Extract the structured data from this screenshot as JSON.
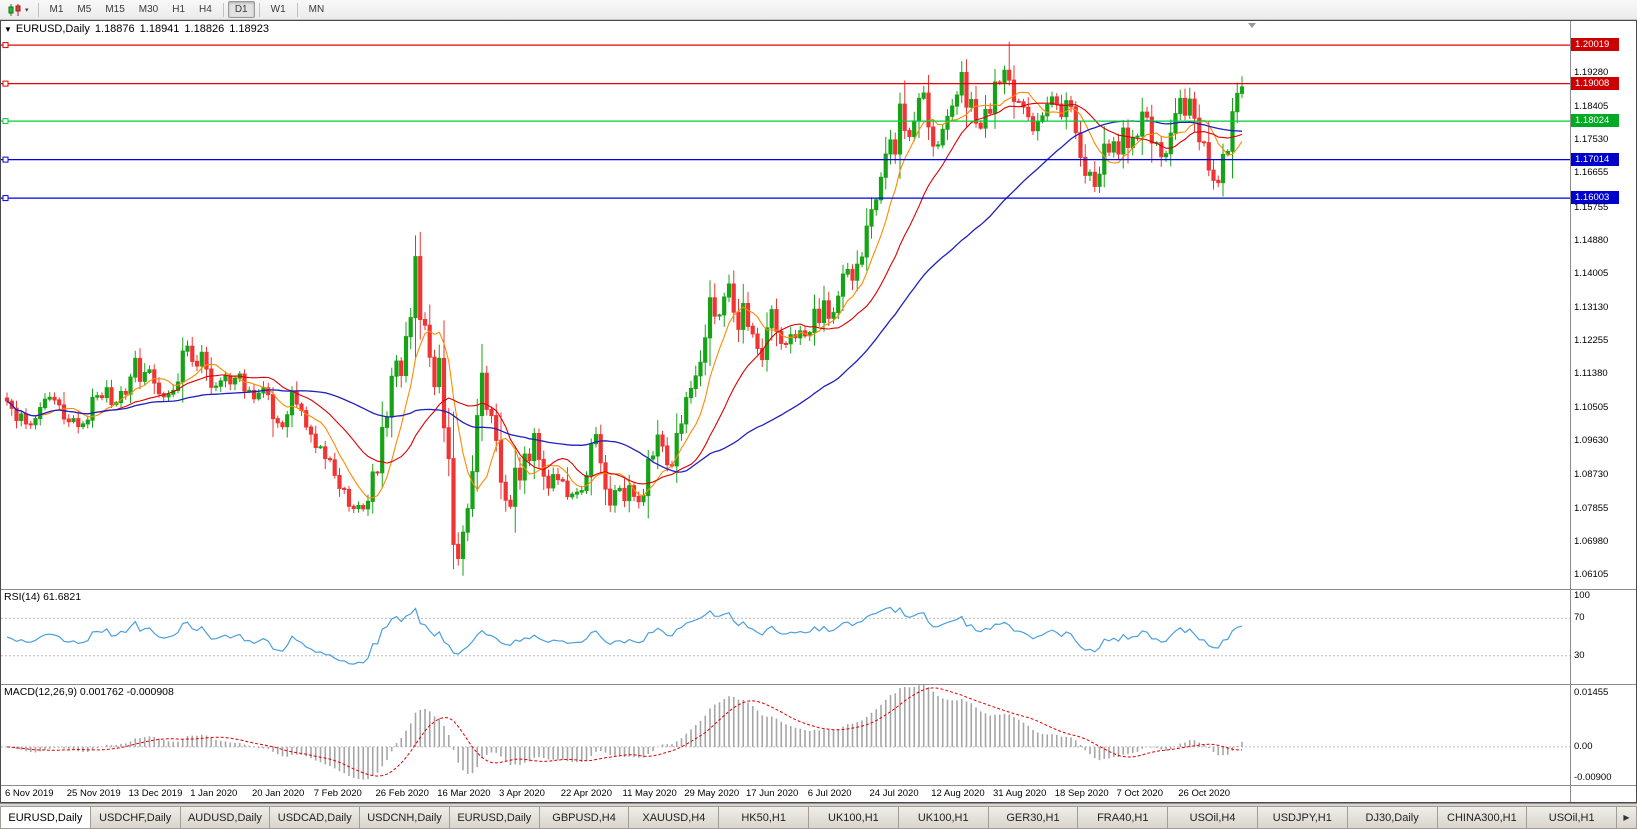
{
  "toolbar": {
    "timeframes": [
      "M1",
      "M5",
      "M15",
      "M30",
      "H1",
      "H4",
      "D1",
      "W1",
      "MN"
    ],
    "active_timeframe": "D1",
    "separators_after": [
      "H4",
      "D1",
      "W1"
    ]
  },
  "chart": {
    "header": {
      "symbol": "EURUSD,Daily",
      "open": "1.18876",
      "high": "1.18941",
      "low": "1.18826",
      "close": "1.18923"
    },
    "price_axis_ticks": [
      "1.19280",
      "1.18405",
      "1.17530",
      "1.16655",
      "1.15755",
      "1.14880",
      "1.14005",
      "1.13130",
      "1.12255",
      "1.11380",
      "1.10505",
      "1.09630",
      "1.08730",
      "1.07855",
      "1.06980",
      "1.06105"
    ],
    "hlines": [
      {
        "label": "1.20019",
        "value": 1.20019,
        "line_color": "#e60000",
        "tag_color": "#cc0000"
      },
      {
        "label": "1.19008",
        "value": 1.19008,
        "line_color": "#e60000",
        "tag_color": "#cc0000"
      },
      {
        "label": "1.18024",
        "value": 1.18024,
        "line_color": "#00cc33",
        "tag_color": "#00aa22"
      },
      {
        "label": "1.17014",
        "value": 1.17014,
        "line_color": "#0000e6",
        "tag_color": "#0000cc"
      },
      {
        "label": "1.16003",
        "value": 1.16003,
        "line_color": "#0000e6",
        "tag_color": "#0000cc"
      }
    ]
  },
  "rsi": {
    "label": "RSI(14) 61.6821",
    "levels": [
      {
        "text": "100",
        "value": 100
      },
      {
        "text": "70",
        "value": 70
      },
      {
        "text": "30",
        "value": 30
      }
    ]
  },
  "macd": {
    "label": "MACD(12,26,9) 0.001762 -0.000908",
    "axis_labels": [
      {
        "text": "0.01455",
        "pos": "top"
      },
      {
        "text": "0.00",
        "pos": "zero"
      },
      {
        "text": "-0.00900",
        "pos": "bottom"
      }
    ]
  },
  "time_axis": {
    "labels": [
      {
        "i": 0,
        "text": "6 Nov 2019"
      },
      {
        "i": 13,
        "text": "25 Nov 2019"
      },
      {
        "i": 26,
        "text": "13 Dec 2019"
      },
      {
        "i": 39,
        "text": "1 Jan 2020"
      },
      {
        "i": 52,
        "text": "20 Jan 2020"
      },
      {
        "i": 65,
        "text": "7 Feb 2020"
      },
      {
        "i": 78,
        "text": "26 Feb 2020"
      },
      {
        "i": 91,
        "text": "16 Mar 2020"
      },
      {
        "i": 104,
        "text": "3 Apr 2020"
      },
      {
        "i": 117,
        "text": "22 Apr 2020"
      },
      {
        "i": 130,
        "text": "11 May 2020"
      },
      {
        "i": 143,
        "text": "29 May 2020"
      },
      {
        "i": 156,
        "text": "17 Jun 2020"
      },
      {
        "i": 169,
        "text": "6 Jul 2020"
      },
      {
        "i": 182,
        "text": "24 Jul 2020"
      },
      {
        "i": 195,
        "text": "12 Aug 2020"
      },
      {
        "i": 208,
        "text": "31 Aug 2020"
      },
      {
        "i": 221,
        "text": "18 Sep 2020"
      },
      {
        "i": 234,
        "text": "7 Oct 2020"
      },
      {
        "i": 247,
        "text": "26 Oct 2020"
      }
    ]
  },
  "tabs": {
    "active_index": 0,
    "items": [
      "EURUSD,Daily",
      "USDCHF,Daily",
      "AUDUSD,Daily",
      "USDCAD,Daily",
      "USDCNH,Daily",
      "EURUSD,Daily",
      "GBPUSD,H4",
      "XAUUSD,H4",
      "HK50,H1",
      "UK100,H1",
      "UK100,H1",
      "GER30,H1",
      "FRA40,H1",
      "USOil,H4",
      "USDJPY,H1",
      "DJ30,Daily",
      "CHINA300,H1",
      "USOil,H1"
    ],
    "scroll_right_icon": "▶"
  },
  "chart_data": {
    "type": "candlestick",
    "symbol": "EURUSD",
    "timeframe": "Daily",
    "ohlc_current": {
      "open": 1.18876,
      "high": 1.18941,
      "low": 1.18826,
      "close": 1.18923
    },
    "y_range": [
      1.0575,
      1.2065
    ],
    "first_open": 1.1076,
    "candle_up_color": "#17a317",
    "candle_down_color": "#f03535",
    "horizontal_levels": [
      1.20019,
      1.19008,
      1.18024,
      1.17014,
      1.16003
    ],
    "closes": [
      1.1068,
      1.1049,
      1.1017,
      1.1034,
      1.1008,
      1.1006,
      1.1022,
      1.1051,
      1.1073,
      1.1078,
      1.1071,
      1.1058,
      1.1021,
      1.1014,
      1.1022,
      1.1001,
      1.1008,
      1.1018,
      1.1078,
      1.1082,
      1.1077,
      1.1103,
      1.1059,
      1.1064,
      1.1093,
      1.1086,
      1.1131,
      1.118,
      1.112,
      1.1143,
      1.115,
      1.1115,
      1.1087,
      1.1079,
      1.1086,
      1.1096,
      1.1118,
      1.1199,
      1.1212,
      1.1172,
      1.116,
      1.1196,
      1.1152,
      1.1104,
      1.1107,
      1.1121,
      1.1134,
      1.1113,
      1.1128,
      1.1139,
      1.1094,
      1.1096,
      1.1074,
      1.1089,
      1.1103,
      1.1085,
      1.1022,
      1.1011,
      1.1001,
      1.1032,
      1.1093,
      1.106,
      1.1043,
      1.1,
      1.0981,
      1.0946,
      1.0948,
      1.0917,
      1.0914,
      1.0873,
      1.0839,
      1.0836,
      1.0792,
      1.0786,
      1.0794,
      1.0785,
      1.0805,
      1.0882,
      1.088,
      1.0999,
      1.1026,
      1.1133,
      1.1173,
      1.1135,
      1.1237,
      1.1287,
      1.1447,
      1.1282,
      1.1267,
      1.1183,
      1.1106,
      1.118,
      1.0998,
      1.0917,
      1.0692,
      1.0655,
      1.0724,
      1.0786,
      1.0883,
      1.103,
      1.1141,
      1.1046,
      1.103,
      1.0965,
      1.0855,
      1.0808,
      1.0792,
      1.0892,
      1.0861,
      1.0929,
      1.0912,
      1.0983,
      1.0915,
      1.0871,
      1.084,
      1.0875,
      1.0862,
      1.0858,
      1.0817,
      1.0824,
      1.0829,
      1.0833,
      1.0873,
      1.0956,
      1.098,
      1.0906,
      1.0837,
      1.0795,
      1.0833,
      1.0839,
      1.0807,
      1.0846,
      1.0818,
      1.0804,
      1.082,
      1.0916,
      1.0924,
      1.0979,
      1.095,
      1.0901,
      1.0898,
      1.0983,
      1.1008,
      1.1077,
      1.1101,
      1.1134,
      1.117,
      1.1234,
      1.1339,
      1.1291,
      1.1294,
      1.1341,
      1.1375,
      1.1301,
      1.1256,
      1.1324,
      1.1264,
      1.1244,
      1.1206,
      1.1177,
      1.126,
      1.1308,
      1.1251,
      1.1219,
      1.1218,
      1.1242,
      1.1234,
      1.1252,
      1.1239,
      1.1248,
      1.1309,
      1.1274,
      1.1331,
      1.1285,
      1.13,
      1.1343,
      1.1401,
      1.1413,
      1.1385,
      1.1427,
      1.1446,
      1.1527,
      1.157,
      1.1596,
      1.1655,
      1.1716,
      1.1753,
      1.1716,
      1.1847,
      1.1778,
      1.1762,
      1.1803,
      1.1862,
      1.1876,
      1.1787,
      1.1737,
      1.174,
      1.1781,
      1.1815,
      1.1842,
      1.1871,
      1.193,
      1.1839,
      1.1859,
      1.1797,
      1.1784,
      1.1833,
      1.1823,
      1.1905,
      1.1903,
      1.1936,
      1.191,
      1.1854,
      1.1853,
      1.1839,
      1.1814,
      1.1777,
      1.1801,
      1.1816,
      1.1846,
      1.1866,
      1.1847,
      1.1814,
      1.1856,
      1.184,
      1.1772,
      1.1707,
      1.166,
      1.1668,
      1.1631,
      1.1663,
      1.1742,
      1.1721,
      1.1748,
      1.1716,
      1.1784,
      1.1733,
      1.176,
      1.1763,
      1.1826,
      1.1813,
      1.1745,
      1.1746,
      1.1709,
      1.1717,
      1.1771,
      1.1822,
      1.1862,
      1.1818,
      1.186,
      1.181,
      1.1748,
      1.1746,
      1.1674,
      1.1647,
      1.1641,
      1.1715,
      1.1723,
      1.1827,
      1.1875,
      1.1892
    ],
    "extremes": [
      {
        "i": 27,
        "high": 1.12
      },
      {
        "i": 74,
        "low": 1.0778
      },
      {
        "i": 86,
        "high": 1.1495
      },
      {
        "i": 94,
        "low": 1.0655
      },
      {
        "i": 95,
        "low": 1.0636
      },
      {
        "i": 189,
        "high": 1.1909
      },
      {
        "i": 211,
        "high": 1.2011
      },
      {
        "i": 260,
        "high": 1.192
      }
    ],
    "overlays": [
      {
        "name": "SMA(8)",
        "period": 8,
        "color": "#ff8a00"
      },
      {
        "name": "SMA(20)",
        "period": 20,
        "color": "#dd0000"
      },
      {
        "name": "SMA(50)",
        "period": 50,
        "color": "#2020c0"
      }
    ],
    "indicators": {
      "rsi": {
        "period": 14,
        "current": 61.6821,
        "levels": [
          70,
          30
        ],
        "color": "#4aa0dd",
        "range": [
          0,
          100
        ]
      },
      "macd": {
        "fast": 12,
        "slow": 26,
        "signal": 9,
        "current": 0.001762,
        "signal_current": -0.000908,
        "range": [
          -0.009,
          0.0146
        ],
        "histogram_color": "#a6a6a6",
        "signal_color": "#e00000"
      }
    }
  }
}
